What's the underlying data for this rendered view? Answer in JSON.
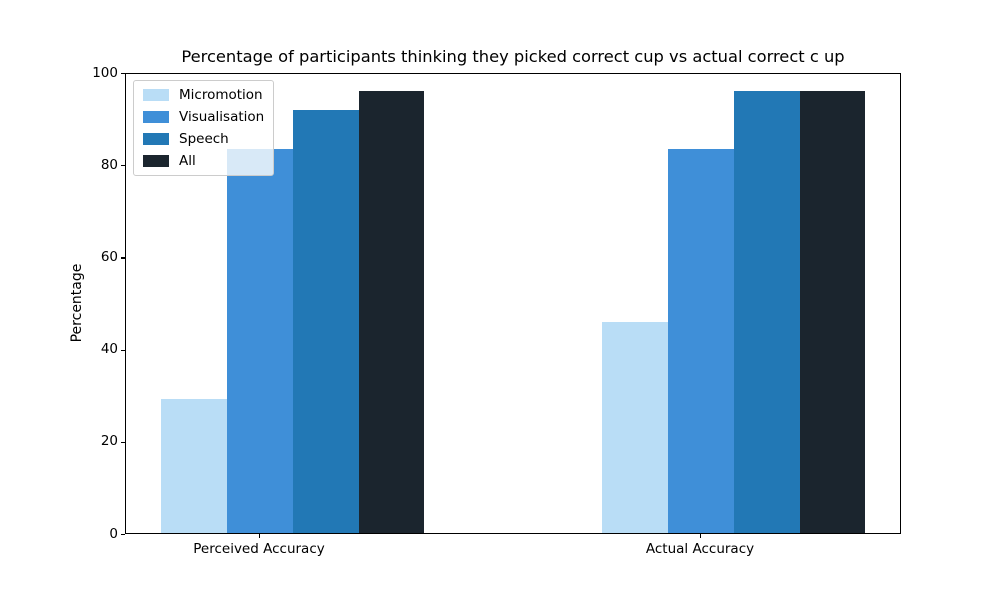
{
  "figure": {
    "background": "#ffffff",
    "text_color": "#000000",
    "axis_color": "#000000",
    "legend_border_color": "#cccccc"
  },
  "chart_data": {
    "type": "bar",
    "title": "Percentage of participants thinking they picked correct cup vs actual correct c up",
    "xlabel": "",
    "ylabel": "Percentage",
    "categories": [
      "Perceived Accuracy",
      "Actual Accuracy"
    ],
    "series": [
      {
        "name": "Micromotion",
        "color": "#b9ddf6",
        "values": [
          29.17,
          45.83
        ]
      },
      {
        "name": "Visualisation",
        "color": "#3f8fd8",
        "values": [
          83.33,
          83.33
        ]
      },
      {
        "name": "Speech",
        "color": "#2278b5",
        "values": [
          91.67,
          95.83
        ]
      },
      {
        "name": "All",
        "color": "#1b252e",
        "values": [
          95.83,
          95.83
        ]
      }
    ],
    "ylim": [
      0,
      100
    ],
    "yticks": [
      0,
      20,
      40,
      60,
      80,
      100
    ],
    "legend_position": "upper left",
    "grid": false
  }
}
